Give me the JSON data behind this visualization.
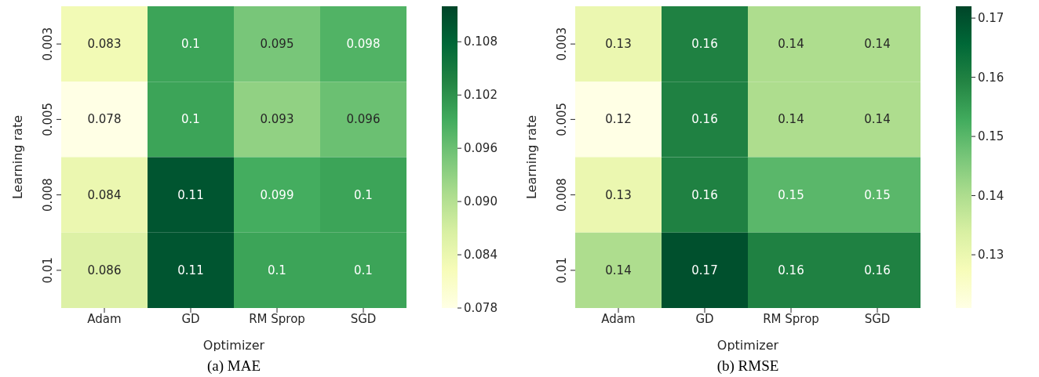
{
  "chart_data": [
    {
      "type": "heatmap",
      "title": "(a) MAE",
      "xlabel": "Optimizer",
      "ylabel": "Learning rate",
      "categories": [
        "Adam",
        "GD",
        "RM Sprop",
        "SGD"
      ],
      "y_categories": [
        "0.003",
        "0.005",
        "0.008",
        "0.01"
      ],
      "cells": [
        [
          0.083,
          0.1,
          0.095,
          0.098
        ],
        [
          0.078,
          0.1,
          0.093,
          0.096
        ],
        [
          0.084,
          0.11,
          0.099,
          0.1
        ],
        [
          0.086,
          0.11,
          0.1,
          0.1
        ]
      ],
      "clim": [
        0.078,
        0.112
      ],
      "cticks": [
        0.078,
        0.084,
        {
          "value": 0.09,
          "label": "0.090"
        },
        0.096,
        0.102,
        0.108
      ],
      "data_labels": true
    },
    {
      "type": "heatmap",
      "title": "(b) RMSE",
      "xlabel": "Optimizer",
      "ylabel": "Learning rate",
      "categories": [
        "Adam",
        "GD",
        "RM Sprop",
        "SGD"
      ],
      "y_categories": [
        "0.003",
        "0.005",
        "0.008",
        "0.01"
      ],
      "cells": [
        [
          0.13,
          0.16,
          0.14,
          0.14
        ],
        [
          0.12,
          0.16,
          0.14,
          0.14
        ],
        [
          0.13,
          0.16,
          0.15,
          0.15
        ],
        [
          0.14,
          0.17,
          0.16,
          0.16
        ]
      ],
      "clim": [
        0.121,
        0.172
      ],
      "cticks": [
        0.13,
        0.14,
        0.15,
        0.16,
        0.17
      ],
      "data_labels": true
    }
  ]
}
